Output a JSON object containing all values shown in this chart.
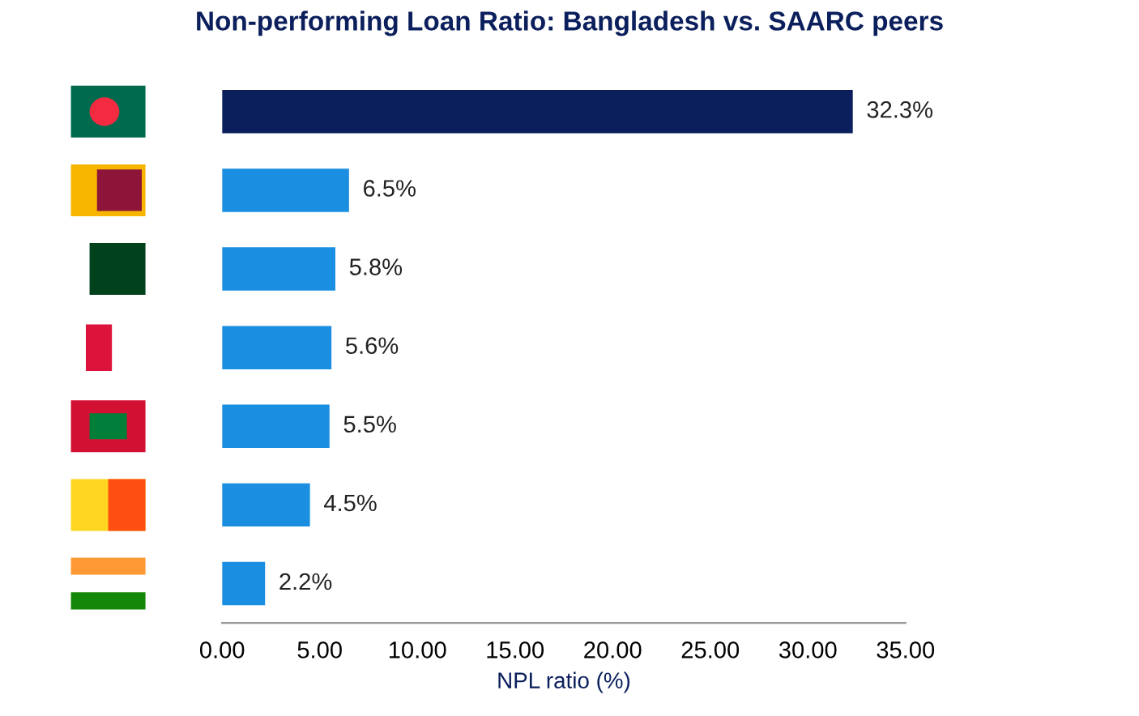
{
  "chart_data": {
    "type": "bar",
    "orientation": "horizontal",
    "title": "Non-performing Loan Ratio: Bangladesh vs. SAARC peers",
    "xlabel": "NPL ratio (%)",
    "categories": [
      null,
      null,
      null,
      null,
      null,
      null,
      null
    ],
    "values": [
      32.3,
      6.5,
      5.8,
      5.6,
      5.5,
      4.5,
      2.2
    ],
    "colors": [
      "#0b1f5c",
      "#1a8ee0",
      "#1a8ee0",
      "#1a8ee0",
      "#1a8ee0",
      "#1a8ee0",
      "#1a8ee0"
    ],
    "value_labels": [
      "32.3%",
      "6.5%",
      "5.8%",
      "5.6%",
      "5.5%",
      "4.5%",
      "2.2%"
    ],
    "xlim": [
      0,
      35
    ],
    "xticks": [
      {
        "value": 0,
        "label": "0.00"
      },
      {
        "value": 5,
        "label": "5.00"
      },
      {
        "value": 10,
        "label": "10.00"
      },
      {
        "value": 15,
        "label": "15.00"
      },
      {
        "value": 20,
        "label": "20.00"
      },
      {
        "value": 25,
        "label": "25.00"
      },
      {
        "value": 30,
        "label": "30.00"
      },
      {
        "value": 35,
        "label": "35.00"
      }
    ],
    "grid": false,
    "legend": false
  }
}
